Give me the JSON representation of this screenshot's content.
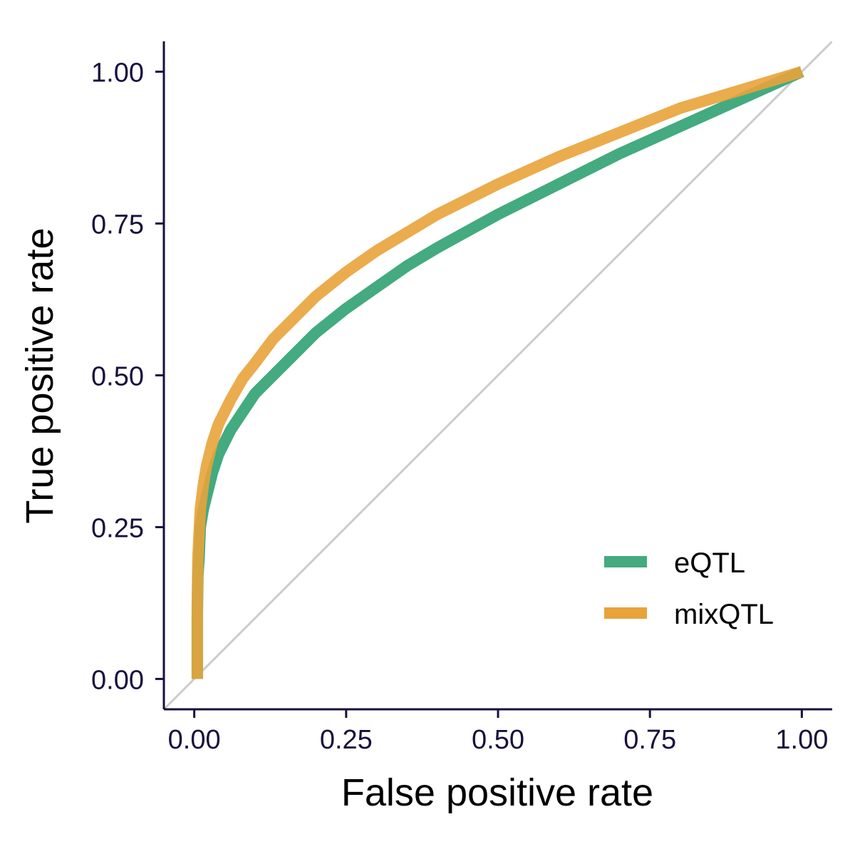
{
  "chart_data": {
    "type": "line",
    "title": "",
    "xlabel": "False positive rate",
    "ylabel": "True positive rate",
    "xlim": [
      -0.05,
      1.05
    ],
    "ylim": [
      -0.05,
      1.05
    ],
    "x_ticks": [
      0,
      0.25,
      0.5,
      0.75,
      1
    ],
    "x_tick_labels": [
      "0.00",
      "0.25",
      "0.50",
      "0.75",
      "1.00"
    ],
    "y_ticks": [
      0,
      0.25,
      0.5,
      0.75,
      1
    ],
    "y_tick_labels": [
      "0.00",
      "0.25",
      "0.50",
      "0.75",
      "1.00"
    ],
    "grid": false,
    "legend_position": "bottom-right",
    "reference_line": {
      "x": [
        -0.05,
        1.05
      ],
      "y": [
        -0.05,
        1.05
      ],
      "color": "#cccccc"
    },
    "series": [
      {
        "name": "eQTL",
        "color": "#44aa80",
        "x": [
          0.005,
          0.005,
          0.006,
          0.008,
          0.01,
          0.015,
          0.02,
          0.03,
          0.04,
          0.06,
          0.08,
          0.1,
          0.13,
          0.16,
          0.2,
          0.25,
          0.3,
          0.35,
          0.4,
          0.5,
          0.6,
          0.7,
          0.8,
          0.9,
          1.0
        ],
        "y": [
          0.0,
          0.1,
          0.17,
          0.2,
          0.25,
          0.28,
          0.3,
          0.34,
          0.37,
          0.41,
          0.44,
          0.47,
          0.5,
          0.53,
          0.57,
          0.61,
          0.645,
          0.68,
          0.71,
          0.765,
          0.815,
          0.865,
          0.91,
          0.955,
          1.0
        ]
      },
      {
        "name": "mixQTL",
        "color": "#e8a33a",
        "x": [
          0.005,
          0.005,
          0.006,
          0.008,
          0.01,
          0.015,
          0.02,
          0.03,
          0.04,
          0.06,
          0.08,
          0.1,
          0.13,
          0.16,
          0.2,
          0.25,
          0.3,
          0.35,
          0.4,
          0.5,
          0.6,
          0.7,
          0.8,
          0.9,
          1.0
        ],
        "y": [
          0.0,
          0.12,
          0.2,
          0.24,
          0.28,
          0.32,
          0.35,
          0.39,
          0.42,
          0.46,
          0.495,
          0.52,
          0.56,
          0.59,
          0.63,
          0.67,
          0.705,
          0.735,
          0.765,
          0.815,
          0.86,
          0.9,
          0.94,
          0.97,
          1.0
        ]
      }
    ],
    "axis_color": "#1a0f3c"
  }
}
